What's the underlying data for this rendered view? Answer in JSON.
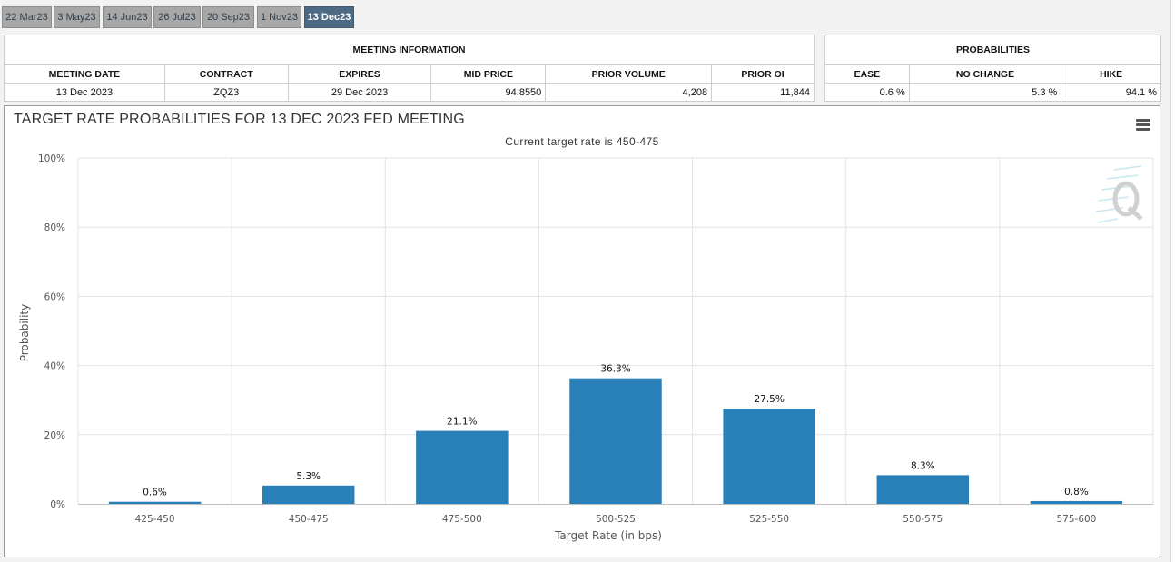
{
  "tabs": [
    {
      "label": "22 Mar23",
      "active": false
    },
    {
      "label": "3 May23",
      "active": false
    },
    {
      "label": "14 Jun23",
      "active": false
    },
    {
      "label": "26 Jul23",
      "active": false
    },
    {
      "label": "20 Sep23",
      "active": false
    },
    {
      "label": "1 Nov23",
      "active": false
    },
    {
      "label": "13 Dec23",
      "active": true
    }
  ],
  "meeting_info": {
    "caption": "MEETING INFORMATION",
    "headers": [
      "MEETING DATE",
      "CONTRACT",
      "EXPIRES",
      "MID PRICE",
      "PRIOR VOLUME",
      "PRIOR OI"
    ],
    "values": [
      "13 Dec 2023",
      "ZQZ3",
      "29 Dec 2023",
      "94.8550",
      "4,208",
      "11,844"
    ]
  },
  "probabilities": {
    "caption": "PROBABILITIES",
    "headers": [
      "EASE",
      "NO CHANGE",
      "HIKE"
    ],
    "values": [
      "0.6 %",
      "5.3 %",
      "94.1 %"
    ]
  },
  "colors": {
    "bar": "#2980b9",
    "active_tab": "#4d6a84",
    "grid": "#e3e3e3"
  },
  "chart_data": {
    "type": "bar",
    "title": "TARGET RATE PROBABILITIES FOR 13 DEC 2023 FED MEETING",
    "subtitle": "Current target rate is 450-475",
    "xlabel": "Target Rate (in bps)",
    "ylabel": "Probability",
    "categories": [
      "425-450",
      "450-475",
      "475-500",
      "500-525",
      "525-550",
      "550-575",
      "575-600"
    ],
    "values": [
      0.6,
      5.3,
      21.1,
      36.3,
      27.5,
      8.3,
      0.8
    ],
    "data_labels": [
      "0.6%",
      "5.3%",
      "21.1%",
      "36.3%",
      "27.5%",
      "8.3%",
      "0.8%"
    ],
    "ylim": [
      0,
      100
    ],
    "yticks": [
      0,
      20,
      40,
      60,
      80,
      100
    ],
    "ytick_labels": [
      "0%",
      "20%",
      "40%",
      "60%",
      "80%",
      "100%"
    ],
    "grid": true,
    "legend": "none"
  },
  "icons": {
    "menu": "hamburger-menu-icon",
    "watermark": "q-logo-watermark"
  }
}
